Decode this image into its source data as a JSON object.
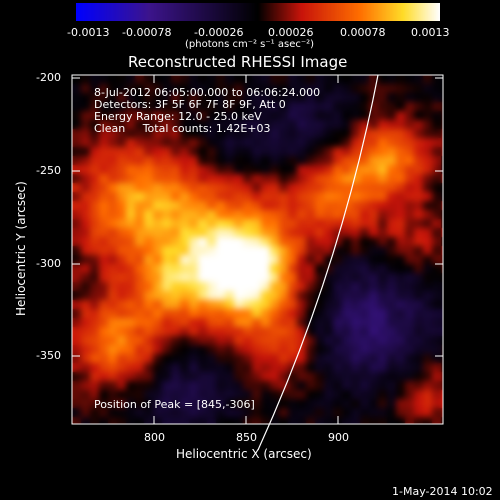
{
  "colorbar": {
    "ticks": [
      "-0.0013",
      "-0.00078",
      "-0.00026",
      "0.00026",
      "0.00078",
      "0.0013"
    ],
    "unit_label": "(photons cm⁻² s⁻¹ asec⁻²)"
  },
  "title": "Reconstructed RHESSI Image",
  "info": {
    "time": "8-Jul-2012 06:05:00.000 to 06:06:24.000",
    "detectors": "Detectors: 3F 5F 6F 7F 8F 9F, Att 0",
    "energy": "Energy Range: 12.0 - 25.0 keV",
    "clean": "Clean     Total counts: 1.42E+03"
  },
  "peak": "Position of Peak = [845,-306]",
  "axes": {
    "xlabel": "Heliocentric X (arcsec)",
    "ylabel": "Heliocentric Y (arcsec)",
    "xticks": [
      "800",
      "850",
      "900"
    ],
    "yticks": [
      "-200",
      "-250",
      "-300",
      "-350"
    ]
  },
  "footer_date": "1-May-2014 10:02",
  "colors": {
    "limb": "#ffffff",
    "background": "#000000",
    "negative": "#2a1060",
    "positive_low": "#d02010",
    "positive_high": "#ffff80"
  }
}
